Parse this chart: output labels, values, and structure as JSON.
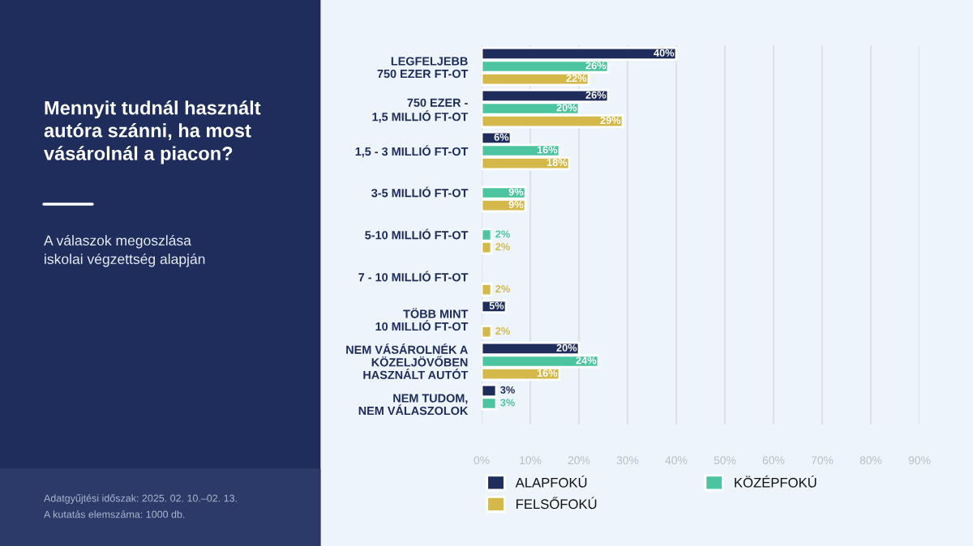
{
  "chart_data": {
    "type": "bar",
    "orientation": "horizontal",
    "title": "Mennyit tudnál használt\nautóra szánni, ha most\nvásárolnál a piacon?",
    "subtitle": "A válaszok megoszlása\niskolai végzettség alapján",
    "categories": [
      "LEGFELJEBB\n750 EZER FT-OT",
      "750 EZER -\n1,5 MILLIÓ FT-OT",
      "1,5 - 3 MILLIÓ FT-OT",
      "3-5 MILLIÓ FT-OT",
      "5-10 MILLIÓ FT-OT",
      "7 - 10 MILLIÓ FT-OT",
      "TÖBB MINT\n10 MILLIÓ FT-OT",
      "NEM VÁSÁROLNÉK A\nKÖZELJÖVŐBEN\nHASZNÁLT AUTÓT",
      "NEM TUDOM,\nNEM VÁLASZOLOK"
    ],
    "series": [
      {
        "name": "ALAPFOKÚ",
        "color": "#1f2d5c",
        "values": [
          40,
          26,
          6,
          null,
          null,
          null,
          5,
          20,
          3
        ],
        "value_labels": [
          "40%",
          "26%",
          "6%",
          null,
          null,
          null,
          "5%",
          "20%",
          "3%"
        ]
      },
      {
        "name": "KÖZÉPFOKÚ",
        "color": "#4cc4a0",
        "values": [
          26,
          20,
          16,
          9,
          2,
          null,
          null,
          24,
          3
        ],
        "value_labels": [
          "26%",
          "20%",
          "16%",
          "9%",
          "2%",
          null,
          null,
          "24%",
          "3%"
        ]
      },
      {
        "name": "FELSŐFOKÚ",
        "color": "#d4b84a",
        "values": [
          22,
          29,
          18,
          9,
          2,
          2,
          2,
          16,
          null
        ],
        "value_labels": [
          "22%",
          "29%",
          "18%",
          "9%",
          "2%",
          "2%",
          "2%",
          "16%",
          null
        ]
      }
    ],
    "xlim": [
      0,
      90
    ],
    "xticks": [
      {
        "value": 0,
        "label": "0%"
      },
      {
        "value": 10,
        "label": "10%"
      },
      {
        "value": 20,
        "label": "20%"
      },
      {
        "value": 30,
        "label": "30%"
      },
      {
        "value": 40,
        "label": "40%"
      },
      {
        "value": 50,
        "label": "50%"
      },
      {
        "value": 60,
        "label": "60%"
      },
      {
        "value": 70,
        "label": "70%"
      },
      {
        "value": 80,
        "label": "80%"
      },
      {
        "value": 90,
        "label": "90%"
      }
    ],
    "grid": "x",
    "legend": "bottom",
    "annotations": [
      "Adatgyűjtési időszak: 2025. 02. 10.–02. 13.",
      "A kutatás elemszáma: 1000 db."
    ]
  }
}
